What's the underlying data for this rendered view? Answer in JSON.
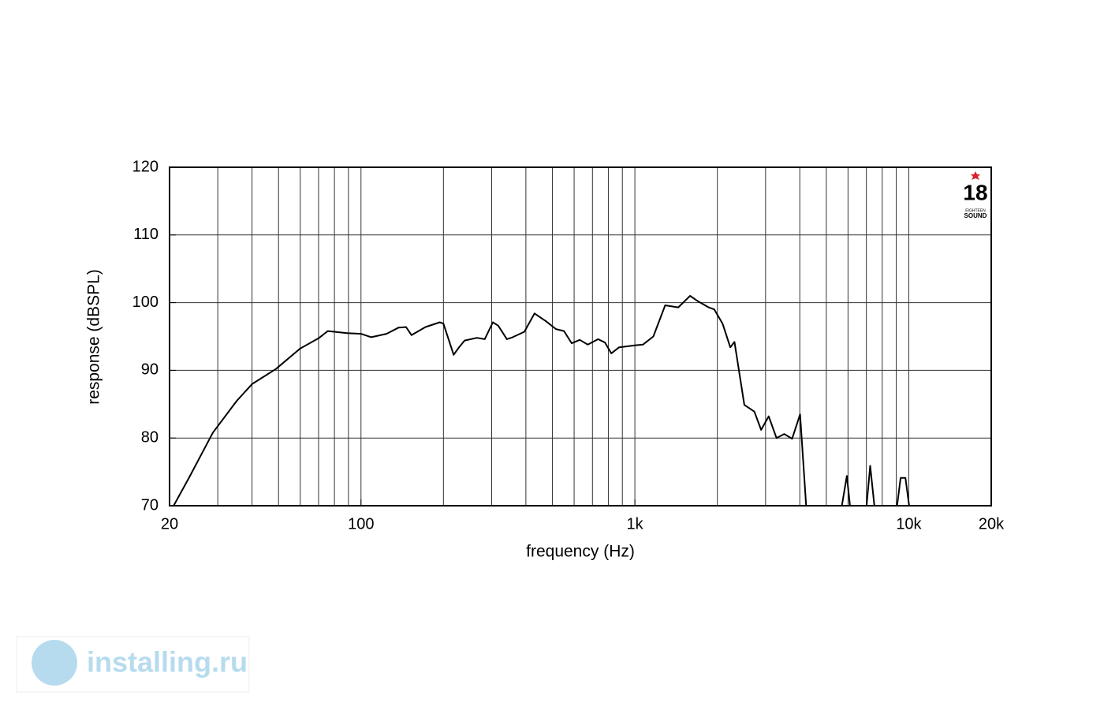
{
  "chart_data": {
    "type": "line",
    "xlabel": "frequency (Hz)",
    "ylabel": "response (dBSPL)",
    "x": [
      20.7,
      23.6,
      28.8,
      35.2,
      40.1,
      48.9,
      59.9,
      70.4,
      75.6,
      89,
      100,
      109,
      124,
      137,
      146,
      153,
      172,
      194,
      200,
      218,
      228,
      239,
      265,
      283,
      303,
      317,
      341,
      358,
      395,
      430,
      472,
      515,
      551,
      588,
      629,
      673,
      734,
      778,
      820,
      876,
      1000,
      1070,
      1168,
      1290,
      1440,
      1590,
      1700,
      1860,
      1950,
      2090,
      2230,
      2310,
      2510,
      2730,
      2890,
      3080,
      3290,
      3510,
      3750,
      4010,
      4220,
      4800,
      5700,
      5940,
      6100,
      6500,
      7010,
      7230,
      7490,
      8200,
      9060,
      9340,
      9720,
      10030
    ],
    "values": [
      70,
      74.2,
      80.8,
      85.5,
      88,
      90.2,
      93.2,
      94.8,
      95.8,
      95.5,
      95.4,
      94.9,
      95.4,
      96.3,
      96.4,
      95.2,
      96.4,
      97.1,
      96.9,
      92.3,
      93.4,
      94.4,
      94.8,
      94.6,
      97.1,
      96.6,
      94.6,
      94.9,
      95.7,
      98.4,
      97.3,
      96.1,
      95.8,
      94,
      94.5,
      93.8,
      94.6,
      94.1,
      92.5,
      93.4,
      93.7,
      93.8,
      95,
      99.6,
      99.3,
      101,
      100.2,
      99.3,
      99,
      96.9,
      93.4,
      94.2,
      84.9,
      83.9,
      81.2,
      83.2,
      80,
      80.6,
      79.9,
      83.5,
      70,
      null,
      70,
      74.4,
      70,
      null,
      70,
      75.9,
      70,
      null,
      70,
      74.1,
      74.1,
      70
    ],
    "color": "#000000",
    "xscale": "log",
    "xlim": [
      20,
      20000
    ],
    "xticks": [
      20,
      100,
      {
        "value": 1000,
        "label": "1k"
      },
      {
        "value": 10000,
        "label": "10k"
      },
      {
        "value": 20000,
        "label": "20k"
      }
    ],
    "ylim": [
      70,
      120
    ],
    "yticks": [
      70,
      80,
      90,
      100,
      110,
      120
    ],
    "grid": true
  },
  "logo": {
    "number": "18",
    "line1": "EIGHTEEN",
    "line2": "SOUND"
  },
  "watermark": "installing.ru"
}
